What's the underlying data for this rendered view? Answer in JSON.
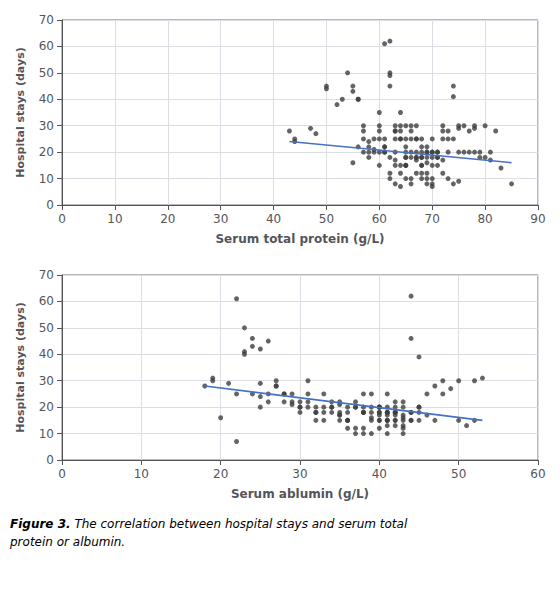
{
  "chart_data": [
    {
      "type": "scatter",
      "xlabel": "Serum total protein (g/L)",
      "ylabel": "Hospital stays (days)",
      "xlim": [
        0,
        90
      ],
      "ylim": [
        0,
        70
      ],
      "xticks": [
        0,
        10,
        20,
        30,
        40,
        50,
        60,
        70,
        80,
        90
      ],
      "yticks": [
        0,
        10,
        20,
        30,
        40,
        50,
        60,
        70
      ],
      "grid": true,
      "series": [
        {
          "type": "scatter",
          "color": "#3d3d3d",
          "x": [
            43,
            44,
            47,
            48,
            50,
            50,
            52,
            53,
            54,
            55,
            55,
            56,
            56,
            57,
            57,
            57,
            58,
            58,
            58,
            59,
            59,
            60,
            60,
            60,
            60,
            61,
            61,
            61,
            61,
            62,
            62,
            62,
            63,
            63,
            63,
            63,
            64,
            64,
            64,
            64,
            65,
            65,
            65,
            65,
            65,
            66,
            66,
            66,
            67,
            67,
            67,
            67,
            68,
            68,
            68,
            68,
            69,
            69,
            69,
            70,
            70,
            70,
            71,
            71,
            72,
            72,
            73,
            73,
            74,
            74,
            75,
            75,
            76,
            77,
            78,
            78,
            79,
            80,
            81,
            83,
            85,
            44,
            55,
            56,
            57,
            58,
            59,
            60,
            61,
            62,
            63,
            64,
            65,
            66,
            67,
            68,
            69,
            70,
            71,
            72,
            73,
            74,
            75,
            76,
            77,
            78,
            79,
            80,
            81,
            82,
            63,
            64,
            65,
            66,
            67,
            68,
            69,
            70,
            71,
            72,
            73,
            74,
            75,
            62,
            62,
            63,
            64,
            65,
            66,
            67,
            68,
            69,
            70,
            68,
            69,
            70,
            65,
            60,
            61,
            62,
            63,
            64,
            65,
            66,
            67,
            68,
            69,
            70,
            71,
            72
          ],
          "values": [
            28,
            24,
            29,
            27,
            45,
            44,
            38,
            40,
            50,
            45,
            43,
            40,
            40,
            30,
            28,
            25,
            20,
            22,
            24,
            21,
            25,
            25,
            35,
            30,
            28,
            61,
            25,
            22,
            20,
            49,
            50,
            45,
            30,
            28,
            25,
            20,
            35,
            30,
            28,
            25,
            25,
            22,
            20,
            15,
            18,
            30,
            25,
            20,
            30,
            25,
            20,
            18,
            25,
            20,
            18,
            15,
            22,
            20,
            18,
            25,
            20,
            18,
            20,
            18,
            30,
            25,
            25,
            20,
            45,
            41,
            30,
            29,
            30,
            28,
            30,
            29,
            20,
            30,
            20,
            14,
            8,
            25,
            16,
            22,
            20,
            18,
            20,
            20,
            22,
            62,
            28,
            25,
            30,
            28,
            25,
            22,
            20,
            20,
            20,
            28,
            28,
            25,
            20,
            20,
            20,
            20,
            18,
            18,
            17,
            28,
            17,
            15,
            15,
            18,
            17,
            15,
            12,
            10,
            15,
            12,
            10,
            8,
            9,
            10,
            12,
            8,
            7,
            15,
            10,
            12,
            10,
            8,
            7,
            18,
            16,
            15,
            18,
            15,
            20,
            18,
            15,
            12,
            10,
            8,
            18,
            12,
            10,
            8,
            18,
            17
          ]
        },
        {
          "type": "line",
          "color": "#4472C4",
          "x": [
            43,
            85
          ],
          "values": [
            24,
            16
          ]
        }
      ]
    },
    {
      "type": "scatter",
      "xlabel": "Serum ablumin (g/L)",
      "ylabel": "Hospital stays (days)",
      "xlim": [
        0,
        60
      ],
      "ylim": [
        0,
        70
      ],
      "xticks": [
        0,
        10,
        20,
        30,
        40,
        50,
        60
      ],
      "yticks": [
        0,
        10,
        20,
        30,
        40,
        50,
        60,
        70
      ],
      "grid": true,
      "series": [
        {
          "type": "scatter",
          "color": "#3d3d3d",
          "x": [
            19,
            19,
            20,
            21,
            22,
            22,
            23,
            23,
            24,
            24,
            25,
            25,
            25,
            26,
            26,
            27,
            27,
            28,
            28,
            29,
            29,
            30,
            30,
            30,
            31,
            31,
            31,
            32,
            32,
            32,
            33,
            33,
            33,
            34,
            34,
            35,
            35,
            35,
            36,
            36,
            36,
            37,
            37,
            38,
            38,
            38,
            39,
            39,
            40,
            40,
            40,
            41,
            41,
            41,
            42,
            42,
            43,
            43,
            44,
            44,
            45,
            45,
            46,
            47,
            48,
            50,
            52,
            18,
            22,
            23,
            24,
            25,
            26,
            27,
            28,
            29,
            30,
            31,
            32,
            33,
            34,
            35,
            36,
            37,
            38,
            39,
            40,
            41,
            42,
            43,
            44,
            45,
            46,
            47,
            48,
            49,
            50,
            51,
            52,
            53,
            34,
            35,
            36,
            37,
            38,
            39,
            40,
            41,
            42,
            43,
            44,
            45,
            35,
            36,
            37,
            38,
            39,
            40,
            41,
            42,
            43,
            44,
            38,
            39,
            40,
            41,
            42,
            43,
            44,
            45,
            40,
            41,
            42,
            43,
            40,
            41,
            42,
            43,
            41,
            42,
            40,
            41
          ],
          "values": [
            30,
            31,
            16,
            29,
            61,
            25,
            41,
            40,
            46,
            25,
            29,
            24,
            20,
            25,
            22,
            30,
            28,
            25,
            22,
            25,
            22,
            20,
            18,
            22,
            30,
            25,
            22,
            20,
            18,
            15,
            25,
            20,
            18,
            22,
            20,
            22,
            21,
            18,
            20,
            18,
            15,
            22,
            20,
            25,
            20,
            18,
            25,
            20,
            20,
            18,
            15,
            25,
            20,
            18,
            22,
            20,
            22,
            20,
            62,
            46,
            39,
            20,
            25,
            28,
            30,
            30,
            15,
            28,
            7,
            50,
            43,
            42,
            45,
            28,
            25,
            21,
            20,
            20,
            18,
            15,
            18,
            17,
            15,
            20,
            18,
            16,
            15,
            13,
            18,
            16,
            15,
            20,
            17,
            15,
            25,
            27,
            15,
            13,
            30,
            31,
            20,
            17,
            15,
            12,
            10,
            18,
            17,
            15,
            13,
            10,
            18,
            15,
            15,
            12,
            10,
            18,
            15,
            12,
            10,
            17,
            15,
            18,
            12,
            10,
            20,
            18,
            15,
            17,
            15,
            18,
            20,
            17,
            15,
            13,
            18,
            15,
            18,
            12,
            15,
            18,
            20,
            18
          ]
        },
        {
          "type": "line",
          "color": "#4472C4",
          "x": [
            18,
            53
          ],
          "values": [
            28,
            15
          ]
        }
      ]
    }
  ],
  "caption_bold": "Figure 3.",
  "caption_italic": " The correlation between hospital stays and serum total",
  "caption_line2": "protein or albumin."
}
